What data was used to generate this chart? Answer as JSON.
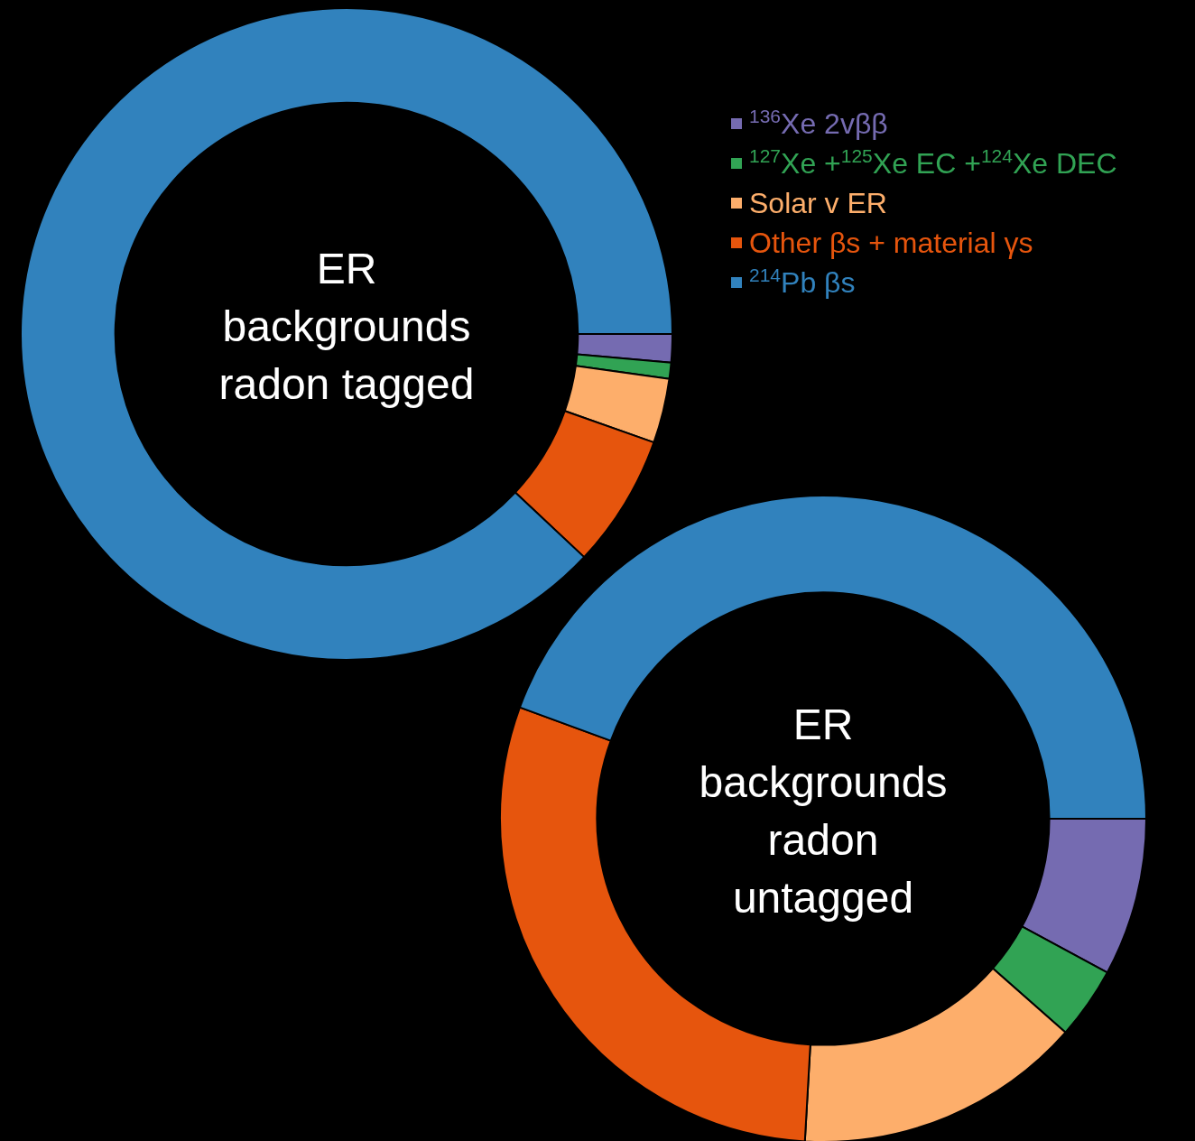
{
  "chart_data": {
    "type": "donut",
    "legend": "top right",
    "categories": [
      "$^{136}$Xe 2vββ",
      "$^{127}$Xe +$^{125}$Xe EC +$^{124}$Xe DEC",
      "Solar v ER",
      "Other βs + material γs",
      "$^{214}$Pb βs"
    ],
    "colors": [
      "#756bb1",
      "#31a354",
      "#fdae6b",
      "#e6550d",
      "#3182bd"
    ],
    "series": [
      {
        "name": "ER backgrounds radon tagged",
        "values": [
          1.4,
          0.8,
          3.2,
          6.6,
          88
        ]
      },
      {
        "name": "ER backgrounds radon untagged",
        "values": [
          7.9,
          3.6,
          14.4,
          29.7,
          44.4
        ]
      }
    ]
  }
}
